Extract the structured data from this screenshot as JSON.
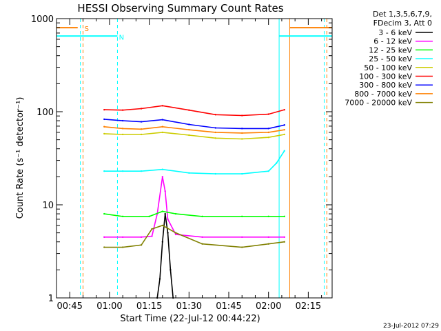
{
  "chart_data": {
    "type": "line",
    "title": "HESSI Observing Summary Count Rates",
    "xlabel": "Start Time (22-Jul-12 00:44:22)",
    "ylabel": "Count Rate (s⁻¹ detector⁻¹)",
    "y_scale": "log",
    "ylim": [
      1,
      1000
    ],
    "xlim": [
      "00:40",
      "02:24"
    ],
    "x_ticks": [
      "00:45",
      "01:00",
      "01:15",
      "01:30",
      "01:45",
      "02:00",
      "02:15"
    ],
    "y_ticks": [
      "1",
      "10",
      "100",
      "1000"
    ],
    "legend_header": [
      "Det 1,3,5,6,7,9,",
      "FDecim 3, Att 0"
    ],
    "legend_position": "outside-right",
    "timestamp": "23-Jul-2012 07:29",
    "series": [
      {
        "name": "3 - 6 keV",
        "color": "#000000",
        "x": [
          "01:18",
          "01:19",
          "01:20",
          "01:21",
          "01:22",
          "01:23",
          "01:24"
        ],
        "values": [
          1,
          1.6,
          4,
          8,
          5,
          2,
          1
        ]
      },
      {
        "name": "6 - 12 keV",
        "color": "#ff00ff",
        "x": [
          "00:58",
          "01:05",
          "01:12",
          "01:16",
          "01:18",
          "01:20",
          "01:21",
          "01:22",
          "01:25",
          "01:35",
          "01:50",
          "02:00",
          "02:06"
        ],
        "values": [
          4.5,
          4.5,
          4.5,
          4.6,
          8,
          20,
          14,
          7,
          4.8,
          4.5,
          4.5,
          4.5,
          4.5
        ]
      },
      {
        "name": "12 - 25 keV",
        "color": "#00ff00",
        "x": [
          "00:58",
          "01:05",
          "01:15",
          "01:20",
          "01:25",
          "01:35",
          "01:50",
          "02:00",
          "02:06"
        ],
        "values": [
          8,
          7.5,
          7.5,
          8.5,
          8,
          7.5,
          7.5,
          7.5,
          7.5
        ]
      },
      {
        "name": "25 - 50 keV",
        "color": "#00ffff",
        "x": [
          "00:58",
          "01:05",
          "01:12",
          "01:20",
          "01:30",
          "01:40",
          "01:50",
          "02:00",
          "02:03",
          "02:06"
        ],
        "values": [
          23,
          23,
          23,
          24,
          22,
          21.5,
          21.5,
          23,
          28,
          38
        ]
      },
      {
        "name": "50 - 100 keV",
        "color": "#cccc00",
        "x": [
          "00:58",
          "01:05",
          "01:12",
          "01:20",
          "01:30",
          "01:40",
          "01:50",
          "02:00",
          "02:06"
        ],
        "values": [
          58,
          57,
          57,
          60,
          56,
          52,
          51,
          53,
          57
        ]
      },
      {
        "name": "100 - 300 keV",
        "color": "#ff0000",
        "x": [
          "00:58",
          "01:05",
          "01:12",
          "01:20",
          "01:30",
          "01:40",
          "01:50",
          "02:00",
          "02:06"
        ],
        "values": [
          105,
          104,
          108,
          116,
          104,
          93,
          91,
          94,
          105
        ]
      },
      {
        "name": "300 - 800 keV",
        "color": "#0000ff",
        "x": [
          "00:58",
          "01:05",
          "01:12",
          "01:20",
          "01:30",
          "01:40",
          "01:50",
          "02:00",
          "02:06"
        ],
        "values": [
          83,
          80,
          78,
          82,
          73,
          67,
          66,
          66,
          72
        ]
      },
      {
        "name": "800 - 7000 keV",
        "color": "#ff8000",
        "x": [
          "00:58",
          "01:05",
          "01:12",
          "01:20",
          "01:30",
          "01:40",
          "01:50",
          "02:00",
          "02:06"
        ],
        "values": [
          69,
          66,
          65,
          69,
          64,
          60,
          59,
          60,
          64
        ]
      },
      {
        "name": "7000 - 20000 keV",
        "color": "#808000",
        "x": [
          "00:58",
          "01:05",
          "01:12",
          "01:16",
          "01:20",
          "01:25",
          "01:35",
          "01:50",
          "02:00",
          "02:06"
        ],
        "values": [
          3.5,
          3.5,
          3.7,
          5.5,
          6,
          5,
          3.8,
          3.5,
          3.8,
          4
        ]
      }
    ],
    "annotations": [
      {
        "label": "S",
        "color": "#ff8000",
        "time": "00:49",
        "level": 800
      },
      {
        "label": "N",
        "color": "#00ffff",
        "time": "01:02",
        "level": 650
      }
    ],
    "flag_lines": [
      {
        "color": "#00ffff",
        "style": "dashed",
        "time": "00:49"
      },
      {
        "color": "#ff8000",
        "style": "dashed",
        "time": "00:50"
      },
      {
        "color": "#00ffff",
        "style": "dashed",
        "time": "01:03"
      },
      {
        "color": "#00ffff",
        "style": "solid",
        "time": "02:04"
      },
      {
        "color": "#ff8000",
        "style": "solid",
        "time": "02:08"
      },
      {
        "color": "#00ffff",
        "style": "dashed",
        "time": "02:21"
      },
      {
        "color": "#ff8000",
        "style": "dashed",
        "time": "02:22"
      }
    ],
    "flag_bars": [
      {
        "color": "#00ffff",
        "from": "00:40",
        "to": "01:03",
        "level": 650
      },
      {
        "color": "#ff8000",
        "from": "00:40",
        "to": "00:48",
        "level": 800
      },
      {
        "color": "#00ffff",
        "from": "02:04",
        "to": "02:24",
        "level": 650
      },
      {
        "color": "#ff8000",
        "from": "02:08",
        "to": "02:24",
        "level": 800
      }
    ]
  }
}
